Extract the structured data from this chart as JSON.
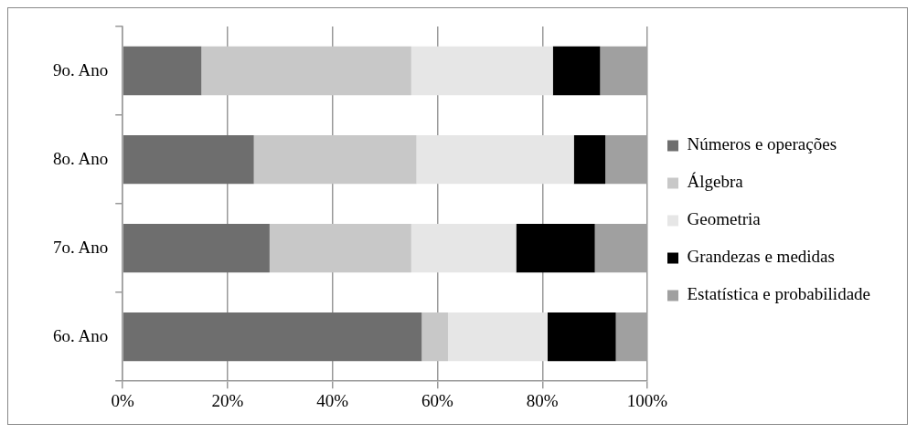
{
  "chart_data": {
    "type": "bar",
    "orientation": "horizontal",
    "stacked": true,
    "categories": [
      "9o. Ano",
      "8o. Ano",
      "7o. Ano",
      "6o. Ano"
    ],
    "series": [
      {
        "name": "Números e operações",
        "color": "#6e6e6e",
        "values": [
          15,
          25,
          28,
          57
        ]
      },
      {
        "name": "Álgebra",
        "color": "#c8c8c8",
        "values": [
          40,
          31,
          27,
          5
        ]
      },
      {
        "name": "Geometria",
        "color": "#e6e6e6",
        "values": [
          27,
          30,
          20,
          19
        ]
      },
      {
        "name": "Grandezas e medidas",
        "color": "#000000",
        "values": [
          9,
          6,
          15,
          13
        ]
      },
      {
        "name": "Estatística e probabilidade",
        "color": "#a0a0a0",
        "values": [
          9,
          8,
          10,
          6
        ]
      }
    ],
    "xlim": [
      0,
      100
    ],
    "xticks": [
      {
        "value": 0,
        "label": "0%"
      },
      {
        "value": 20,
        "label": "20%"
      },
      {
        "value": 40,
        "label": "40%"
      },
      {
        "value": 60,
        "label": "60%"
      },
      {
        "value": 80,
        "label": "80%"
      },
      {
        "value": 100,
        "label": "100%"
      }
    ],
    "grid": "x",
    "legend": "right"
  }
}
